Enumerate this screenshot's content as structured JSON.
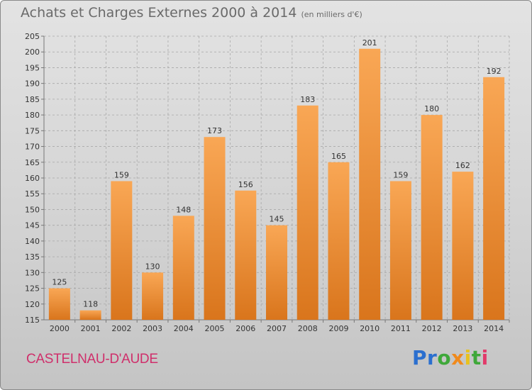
{
  "title": {
    "main": "Achats et Charges Externes 2000 à 2014",
    "unit": "(en milliers d'€)"
  },
  "commune": "CASTELNAU-D'AUDE",
  "logo": {
    "letters": [
      {
        "char": "P",
        "color": "#2b6fcf"
      },
      {
        "char": "r",
        "color": "#2b6fcf"
      },
      {
        "char": "o",
        "color": "#3fa83a"
      },
      {
        "char": "x",
        "color": "#f08a1c"
      },
      {
        "char": "i",
        "color": "#e8c21e"
      },
      {
        "char": "t",
        "color": "#3fa83a"
      },
      {
        "char": "i",
        "color": "#e23a6a"
      }
    ]
  },
  "colors": {
    "bar_light": "#f9a755",
    "bar_dark": "#d9751c",
    "grid": "#a8a8a8",
    "text": "#333333"
  },
  "chart_data": {
    "type": "bar",
    "title": "Achats et Charges Externes 2000 à 2014",
    "subtitle": "(en milliers d'€)",
    "categories": [
      "2000",
      "2001",
      "2002",
      "2003",
      "2004",
      "2005",
      "2006",
      "2007",
      "2008",
      "2009",
      "2010",
      "2011",
      "2012",
      "2013",
      "2014"
    ],
    "values": [
      125,
      118,
      159,
      130,
      148,
      173,
      156,
      145,
      183,
      165,
      201,
      159,
      180,
      162,
      192
    ],
    "ylim": [
      115,
      205
    ],
    "yticks": [
      115,
      120,
      125,
      130,
      135,
      140,
      145,
      150,
      155,
      160,
      165,
      170,
      175,
      180,
      185,
      190,
      195,
      200,
      205
    ],
    "grid": true,
    "data_labels": true
  }
}
